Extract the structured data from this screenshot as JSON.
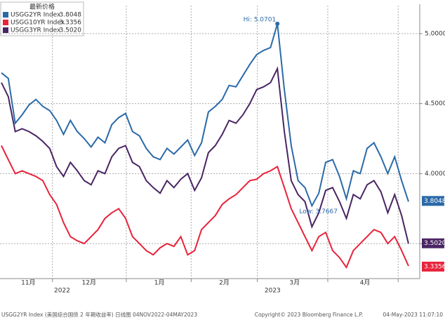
{
  "chart_data": {
    "type": "line",
    "title": "最新价格",
    "xlim": [
      0,
      59
    ],
    "xticks": [
      {
        "value": 3.9,
        "label": "11月"
      },
      {
        "value": 12.7,
        "label": "12月"
      },
      {
        "value": 22.9,
        "label": "1月"
      },
      {
        "value": 32.3,
        "label": "2月"
      },
      {
        "value": 42.5,
        "label": "3月"
      },
      {
        "value": 52.7,
        "label": "4月"
      }
    ],
    "xgrid": [
      7.4,
      18.1,
      27.5,
      37.1,
      47.3,
      57.5
    ],
    "year_labels": [
      {
        "value": 8.8,
        "label": "2022"
      },
      {
        "value": 39.3,
        "label": "2023"
      }
    ],
    "ylim": [
      3.25,
      5.2
    ],
    "yticks": [
      {
        "value": 3.5,
        "label": "3.5000"
      },
      {
        "value": 4,
        "label": "4.0000"
      },
      {
        "value": 4.5,
        "label": "4.5000"
      },
      {
        "value": 5,
        "label": "5.0000"
      }
    ],
    "grid": true,
    "series": [
      {
        "name": "USGG2YR Index",
        "color": "#2b6aa8",
        "last": {
          "value": 3.8048,
          "label": "3.8048"
        },
        "values": [
          4.72,
          4.68,
          4.36,
          4.42,
          4.49,
          4.53,
          4.48,
          4.45,
          4.38,
          4.28,
          4.38,
          4.3,
          4.25,
          4.19,
          4.26,
          4.22,
          4.35,
          4.4,
          4.43,
          4.3,
          4.27,
          4.18,
          4.12,
          4.1,
          4.18,
          4.14,
          4.19,
          4.24,
          4.13,
          4.22,
          4.44,
          4.48,
          4.53,
          4.63,
          4.62,
          4.7,
          4.78,
          4.85,
          4.88,
          4.9,
          5.07,
          4.6,
          4.2,
          3.95,
          3.9,
          3.77,
          3.86,
          4.08,
          4.1,
          3.98,
          3.82,
          4.02,
          4.0,
          4.18,
          4.22,
          4.12,
          4.0,
          4.12,
          3.95,
          3.8
        ]
      },
      {
        "name": "USGG10YR Index",
        "color": "#e8233b",
        "last": {
          "value": 3.3356,
          "label": "3.3356"
        },
        "values": [
          4.2,
          4.1,
          4.0,
          4.02,
          4.0,
          3.98,
          3.95,
          3.85,
          3.78,
          3.65,
          3.55,
          3.52,
          3.5,
          3.55,
          3.6,
          3.68,
          3.72,
          3.75,
          3.68,
          3.55,
          3.5,
          3.45,
          3.42,
          3.47,
          3.5,
          3.48,
          3.55,
          3.42,
          3.45,
          3.6,
          3.65,
          3.7,
          3.78,
          3.82,
          3.85,
          3.9,
          3.95,
          3.96,
          4.0,
          4.02,
          4.05,
          3.9,
          3.75,
          3.65,
          3.55,
          3.45,
          3.55,
          3.58,
          3.45,
          3.4,
          3.33,
          3.45,
          3.5,
          3.55,
          3.6,
          3.58,
          3.5,
          3.55,
          3.45,
          3.34
        ]
      },
      {
        "name": "USGG3YR Index",
        "color": "#4a2563",
        "last": {
          "value": 3.502,
          "label": "3.5020"
        },
        "values": [
          4.65,
          4.55,
          4.3,
          4.32,
          4.3,
          4.27,
          4.23,
          4.18,
          4.05,
          3.98,
          4.08,
          4.02,
          3.95,
          3.92,
          4.02,
          4.0,
          4.12,
          4.18,
          4.2,
          4.08,
          4.05,
          3.95,
          3.9,
          3.86,
          3.95,
          3.9,
          3.96,
          4.0,
          3.88,
          3.97,
          4.15,
          4.2,
          4.28,
          4.38,
          4.36,
          4.42,
          4.5,
          4.6,
          4.62,
          4.65,
          4.75,
          4.3,
          3.95,
          3.85,
          3.8,
          3.62,
          3.72,
          3.88,
          3.9,
          3.8,
          3.68,
          3.85,
          3.82,
          3.92,
          3.95,
          3.87,
          3.72,
          3.85,
          3.7,
          3.5
        ]
      }
    ],
    "annotations": {
      "high": "Hi: 5.0701",
      "low": "Low: 3.7667"
    },
    "footer": [
      "USGG2YR Index (美国综合国债 2 年期收益率) 日线图 04NOV2022-04MAY2023",
      "Copyright© 2023 Bloomberg Finance L.P.",
      "04-May-2023 11:07:10"
    ]
  }
}
